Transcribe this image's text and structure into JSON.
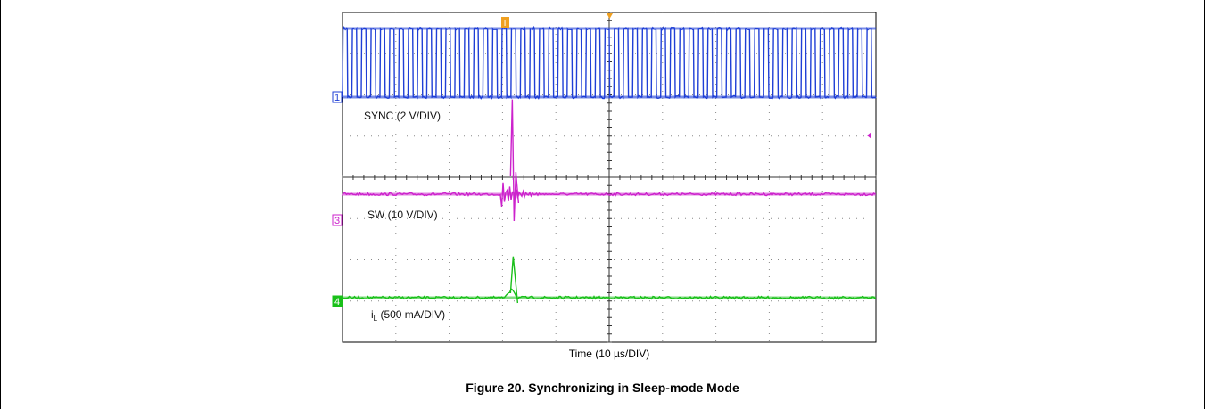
{
  "chart_data": {
    "type": "line",
    "title": "Figure 20. Synchronizing in Sleep-mode Mode",
    "xlabel": "Time (10 µs/DIV)",
    "grid": true,
    "divisions": {
      "x": 10,
      "y": 8
    },
    "series": [
      {
        "name": "SYNC (2 V/DIV)",
        "marker": "1",
        "color": "#1f3fd6",
        "kind": "square-wave",
        "cycles": 57,
        "amplitude_div": 1.9
      },
      {
        "name": "SW (10 V/DIV)",
        "marker": "3",
        "color": "#cc22cc",
        "kind": "ringing-spike",
        "event_div": 3.2,
        "spike_div": 2.3
      },
      {
        "name": "iL (500 mA/DIV)",
        "name_main": "i",
        "name_sub": "L",
        "name_rest": " (500 mA/DIV)",
        "marker": "4",
        "color": "#19c019",
        "kind": "pulse",
        "event_div": 3.2,
        "spike_div": 1.0
      }
    ],
    "markers": {
      "trigger_top": "T",
      "trigger_top_color": "#f0a020",
      "level_arrow_color": "#cc22cc"
    }
  }
}
